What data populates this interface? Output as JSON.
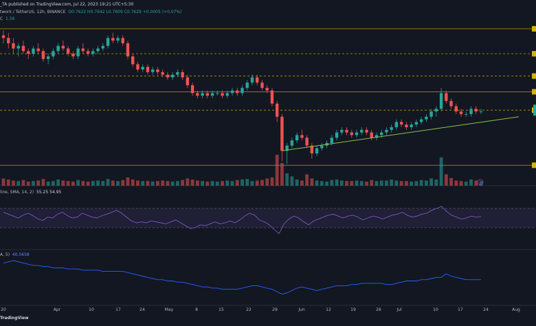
{
  "header": {
    "publisher_line": "_TA published on TradingView.com, Jul 22, 2023 19:21 UTC+5:30",
    "symbol_line": "twork / TetherUS, 12h, BINANCE",
    "ohlc": "O0.7622  H0.7642  L0.7609  C0.7629  +0.0005 (+0.07%)",
    "volume_label": "C",
    "volume_value": "1.56"
  },
  "rsi_legend": {
    "label": "line, SMA, 14, 2)",
    "values": "55.25   54.95"
  },
  "indicator2_legend": {
    "label": "A, 5)",
    "value": "40.5658"
  },
  "footer": {
    "brand": "TradingView"
  },
  "colors": {
    "background": "#131722",
    "up": "#26a69a",
    "down": "#ef5350",
    "level": "#d4b106",
    "trendline": "#8bc34a",
    "rsi": "#7e57c2",
    "indicator2": "#2962ff"
  },
  "chart_data": [
    {
      "type": "candlestick",
      "x_ticks": [
        "20",
        "Apr",
        "10",
        "17",
        "24",
        "May",
        "8",
        "15",
        "22",
        "29",
        "Jun",
        "12",
        "19",
        "26",
        "Jul",
        "10",
        "17",
        "24",
        "Aug"
      ],
      "series": [
        {
          "values": [
            {
              "o": 0.93,
              "h": 0.95,
              "l": 0.9,
              "c": 0.92
            },
            {
              "o": 0.92,
              "h": 0.94,
              "l": 0.88,
              "c": 0.9
            },
            {
              "o": 0.9,
              "h": 0.92,
              "l": 0.86,
              "c": 0.88
            },
            {
              "o": 0.88,
              "h": 0.9,
              "l": 0.85,
              "c": 0.89
            },
            {
              "o": 0.89,
              "h": 0.91,
              "l": 0.86,
              "c": 0.87
            },
            {
              "o": 0.87,
              "h": 0.88,
              "l": 0.84,
              "c": 0.86
            },
            {
              "o": 0.86,
              "h": 0.89,
              "l": 0.85,
              "c": 0.88
            },
            {
              "o": 0.88,
              "h": 0.9,
              "l": 0.86,
              "c": 0.87
            },
            {
              "o": 0.87,
              "h": 0.88,
              "l": 0.83,
              "c": 0.84
            },
            {
              "o": 0.84,
              "h": 0.86,
              "l": 0.82,
              "c": 0.85
            },
            {
              "o": 0.85,
              "h": 0.88,
              "l": 0.84,
              "c": 0.87
            },
            {
              "o": 0.87,
              "h": 0.9,
              "l": 0.86,
              "c": 0.89
            },
            {
              "o": 0.89,
              "h": 0.91,
              "l": 0.87,
              "c": 0.88
            },
            {
              "o": 0.88,
              "h": 0.89,
              "l": 0.85,
              "c": 0.86
            },
            {
              "o": 0.86,
              "h": 0.87,
              "l": 0.84,
              "c": 0.85
            },
            {
              "o": 0.85,
              "h": 0.89,
              "l": 0.84,
              "c": 0.88
            },
            {
              "o": 0.88,
              "h": 0.9,
              "l": 0.86,
              "c": 0.87
            },
            {
              "o": 0.87,
              "h": 0.88,
              "l": 0.85,
              "c": 0.86
            },
            {
              "o": 0.86,
              "h": 0.88,
              "l": 0.85,
              "c": 0.87
            },
            {
              "o": 0.87,
              "h": 0.89,
              "l": 0.86,
              "c": 0.88
            },
            {
              "o": 0.88,
              "h": 0.9,
              "l": 0.87,
              "c": 0.89
            },
            {
              "o": 0.89,
              "h": 0.93,
              "l": 0.88,
              "c": 0.92
            },
            {
              "o": 0.92,
              "h": 0.94,
              "l": 0.9,
              "c": 0.91
            },
            {
              "o": 0.91,
              "h": 0.93,
              "l": 0.9,
              "c": 0.92
            },
            {
              "o": 0.92,
              "h": 0.93,
              "l": 0.89,
              "c": 0.9
            },
            {
              "o": 0.9,
              "h": 0.91,
              "l": 0.84,
              "c": 0.85
            },
            {
              "o": 0.85,
              "h": 0.86,
              "l": 0.81,
              "c": 0.82
            },
            {
              "o": 0.82,
              "h": 0.83,
              "l": 0.79,
              "c": 0.8
            },
            {
              "o": 0.8,
              "h": 0.82,
              "l": 0.79,
              "c": 0.81
            },
            {
              "o": 0.81,
              "h": 0.82,
              "l": 0.78,
              "c": 0.79
            },
            {
              "o": 0.79,
              "h": 0.81,
              "l": 0.78,
              "c": 0.8
            },
            {
              "o": 0.8,
              "h": 0.81,
              "l": 0.78,
              "c": 0.79
            },
            {
              "o": 0.79,
              "h": 0.8,
              "l": 0.77,
              "c": 0.78
            },
            {
              "o": 0.78,
              "h": 0.79,
              "l": 0.76,
              "c": 0.77
            },
            {
              "o": 0.77,
              "h": 0.79,
              "l": 0.76,
              "c": 0.78
            },
            {
              "o": 0.78,
              "h": 0.8,
              "l": 0.77,
              "c": 0.79
            },
            {
              "o": 0.79,
              "h": 0.8,
              "l": 0.76,
              "c": 0.77
            },
            {
              "o": 0.77,
              "h": 0.78,
              "l": 0.73,
              "c": 0.74
            },
            {
              "o": 0.74,
              "h": 0.75,
              "l": 0.7,
              "c": 0.71
            },
            {
              "o": 0.71,
              "h": 0.72,
              "l": 0.69,
              "c": 0.7
            },
            {
              "o": 0.7,
              "h": 0.72,
              "l": 0.69,
              "c": 0.71
            },
            {
              "o": 0.71,
              "h": 0.72,
              "l": 0.69,
              "c": 0.7
            },
            {
              "o": 0.7,
              "h": 0.72,
              "l": 0.69,
              "c": 0.71
            },
            {
              "o": 0.71,
              "h": 0.72,
              "l": 0.7,
              "c": 0.71
            },
            {
              "o": 0.71,
              "h": 0.72,
              "l": 0.69,
              "c": 0.7
            },
            {
              "o": 0.7,
              "h": 0.72,
              "l": 0.69,
              "c": 0.71
            },
            {
              "o": 0.71,
              "h": 0.73,
              "l": 0.7,
              "c": 0.72
            },
            {
              "o": 0.72,
              "h": 0.73,
              "l": 0.7,
              "c": 0.71
            },
            {
              "o": 0.71,
              "h": 0.74,
              "l": 0.7,
              "c": 0.73
            },
            {
              "o": 0.73,
              "h": 0.76,
              "l": 0.72,
              "c": 0.75
            },
            {
              "o": 0.75,
              "h": 0.78,
              "l": 0.74,
              "c": 0.77
            },
            {
              "o": 0.77,
              "h": 0.78,
              "l": 0.74,
              "c": 0.75
            },
            {
              "o": 0.75,
              "h": 0.76,
              "l": 0.72,
              "c": 0.73
            },
            {
              "o": 0.73,
              "h": 0.74,
              "l": 0.71,
              "c": 0.72
            },
            {
              "o": 0.72,
              "h": 0.73,
              "l": 0.66,
              "c": 0.67
            },
            {
              "o": 0.67,
              "h": 0.68,
              "l": 0.6,
              "c": 0.62
            },
            {
              "o": 0.62,
              "h": 0.63,
              "l": 0.45,
              "c": 0.49
            },
            {
              "o": 0.49,
              "h": 0.52,
              "l": 0.44,
              "c": 0.51
            },
            {
              "o": 0.51,
              "h": 0.54,
              "l": 0.5,
              "c": 0.53
            },
            {
              "o": 0.53,
              "h": 0.56,
              "l": 0.52,
              "c": 0.55
            },
            {
              "o": 0.55,
              "h": 0.57,
              "l": 0.53,
              "c": 0.54
            },
            {
              "o": 0.54,
              "h": 0.55,
              "l": 0.5,
              "c": 0.51
            },
            {
              "o": 0.51,
              "h": 0.52,
              "l": 0.46,
              "c": 0.48
            },
            {
              "o": 0.48,
              "h": 0.51,
              "l": 0.47,
              "c": 0.5
            },
            {
              "o": 0.5,
              "h": 0.52,
              "l": 0.49,
              "c": 0.51
            },
            {
              "o": 0.51,
              "h": 0.53,
              "l": 0.5,
              "c": 0.52
            },
            {
              "o": 0.52,
              "h": 0.55,
              "l": 0.51,
              "c": 0.54
            },
            {
              "o": 0.54,
              "h": 0.57,
              "l": 0.53,
              "c": 0.56
            },
            {
              "o": 0.56,
              "h": 0.58,
              "l": 0.55,
              "c": 0.57
            },
            {
              "o": 0.57,
              "h": 0.58,
              "l": 0.55,
              "c": 0.56
            },
            {
              "o": 0.56,
              "h": 0.57,
              "l": 0.54,
              "c": 0.55
            },
            {
              "o": 0.55,
              "h": 0.57,
              "l": 0.54,
              "c": 0.56
            },
            {
              "o": 0.56,
              "h": 0.58,
              "l": 0.55,
              "c": 0.57
            },
            {
              "o": 0.57,
              "h": 0.58,
              "l": 0.55,
              "c": 0.56
            },
            {
              "o": 0.56,
              "h": 0.57,
              "l": 0.53,
              "c": 0.54
            },
            {
              "o": 0.54,
              "h": 0.56,
              "l": 0.53,
              "c": 0.55
            },
            {
              "o": 0.55,
              "h": 0.57,
              "l": 0.54,
              "c": 0.56
            },
            {
              "o": 0.56,
              "h": 0.58,
              "l": 0.55,
              "c": 0.57
            },
            {
              "o": 0.57,
              "h": 0.59,
              "l": 0.56,
              "c": 0.58
            },
            {
              "o": 0.58,
              "h": 0.61,
              "l": 0.57,
              "c": 0.6
            },
            {
              "o": 0.6,
              "h": 0.61,
              "l": 0.58,
              "c": 0.59
            },
            {
              "o": 0.59,
              "h": 0.6,
              "l": 0.57,
              "c": 0.58
            },
            {
              "o": 0.58,
              "h": 0.6,
              "l": 0.57,
              "c": 0.59
            },
            {
              "o": 0.59,
              "h": 0.61,
              "l": 0.58,
              "c": 0.6
            },
            {
              "o": 0.6,
              "h": 0.62,
              "l": 0.59,
              "c": 0.61
            },
            {
              "o": 0.61,
              "h": 0.63,
              "l": 0.6,
              "c": 0.62
            },
            {
              "o": 0.62,
              "h": 0.65,
              "l": 0.61,
              "c": 0.64
            },
            {
              "o": 0.64,
              "h": 0.66,
              "l": 0.62,
              "c": 0.65
            },
            {
              "o": 0.65,
              "h": 0.73,
              "l": 0.64,
              "c": 0.71
            },
            {
              "o": 0.71,
              "h": 0.72,
              "l": 0.67,
              "c": 0.68
            },
            {
              "o": 0.68,
              "h": 0.69,
              "l": 0.65,
              "c": 0.66
            },
            {
              "o": 0.66,
              "h": 0.67,
              "l": 0.63,
              "c": 0.64
            },
            {
              "o": 0.64,
              "h": 0.65,
              "l": 0.62,
              "c": 0.63
            },
            {
              "o": 0.63,
              "h": 0.64,
              "l": 0.62,
              "c": 0.63
            },
            {
              "o": 0.63,
              "h": 0.66,
              "l": 0.62,
              "c": 0.65
            },
            {
              "o": 0.65,
              "h": 0.66,
              "l": 0.63,
              "c": 0.64
            },
            {
              "o": 0.64,
              "h": 0.65,
              "l": 0.63,
              "c": 0.64
            }
          ]
        }
      ],
      "volume": [
        14,
        12,
        10,
        9,
        11,
        8,
        9,
        10,
        13,
        8,
        9,
        12,
        10,
        9,
        8,
        11,
        9,
        8,
        9,
        10,
        9,
        13,
        10,
        9,
        11,
        16,
        12,
        10,
        9,
        9,
        8,
        9,
        10,
        9,
        8,
        9,
        11,
        14,
        12,
        10,
        9,
        8,
        9,
        8,
        9,
        10,
        9,
        11,
        12,
        13,
        9,
        10,
        11,
        14,
        16,
        60,
        44,
        24,
        18,
        12,
        10,
        22,
        14,
        10,
        9,
        8,
        11,
        12,
        10,
        9,
        9,
        10,
        9,
        8,
        11,
        9,
        10,
        10,
        12,
        10,
        9,
        9,
        8,
        9,
        11,
        10,
        14,
        12,
        55,
        22,
        15,
        10,
        9,
        8,
        12,
        10,
        9
      ],
      "horizontal_levels": 7,
      "trendline": "ascending support line from the June low"
    },
    {
      "type": "line",
      "name": "RSI",
      "ylim": [
        0,
        100
      ],
      "series": [
        {
          "values": [
            62,
            58,
            54,
            50,
            56,
            60,
            55,
            48,
            45,
            52,
            50,
            58,
            62,
            55,
            50,
            52,
            60,
            56,
            52,
            50,
            55,
            58,
            62,
            66,
            60,
            52,
            44,
            40,
            42,
            40,
            44,
            42,
            40,
            38,
            42,
            46,
            40,
            34,
            28,
            30,
            36,
            34,
            38,
            42,
            38,
            40,
            44,
            40,
            46,
            54,
            60,
            56,
            46,
            42,
            36,
            26,
            18,
            38,
            48,
            54,
            50,
            42,
            36,
            44,
            48,
            52,
            56,
            58,
            54,
            50,
            54,
            56,
            52,
            46,
            50,
            54,
            52,
            48,
            52,
            56,
            58,
            62,
            56,
            52,
            54,
            58,
            60,
            66,
            70,
            74,
            64,
            56,
            52,
            48,
            50,
            54,
            52,
            53
          ]
        }
      ],
      "bands": [
        30,
        70
      ]
    },
    {
      "type": "line",
      "name": "Indicator 2",
      "series": [
        {
          "values": [
            52,
            53,
            54,
            53,
            52,
            51,
            50,
            50,
            49,
            49,
            48,
            48,
            48,
            47,
            47,
            47,
            46,
            46,
            46,
            46,
            45,
            45,
            45,
            45,
            45,
            44,
            43,
            42,
            41,
            40,
            39,
            38,
            38,
            37,
            37,
            36,
            36,
            35,
            34,
            33,
            32,
            32,
            31,
            31,
            30,
            30,
            30,
            30,
            31,
            32,
            33,
            33,
            32,
            31,
            30,
            28,
            26,
            27,
            29,
            31,
            32,
            31,
            30,
            29,
            30,
            31,
            32,
            33,
            33,
            33,
            34,
            34,
            35,
            35,
            35,
            35,
            35,
            34,
            34,
            35,
            36,
            37,
            37,
            37,
            38,
            38,
            39,
            40,
            40,
            43,
            41,
            40,
            39,
            38,
            38,
            38,
            38
          ]
        }
      ]
    }
  ]
}
